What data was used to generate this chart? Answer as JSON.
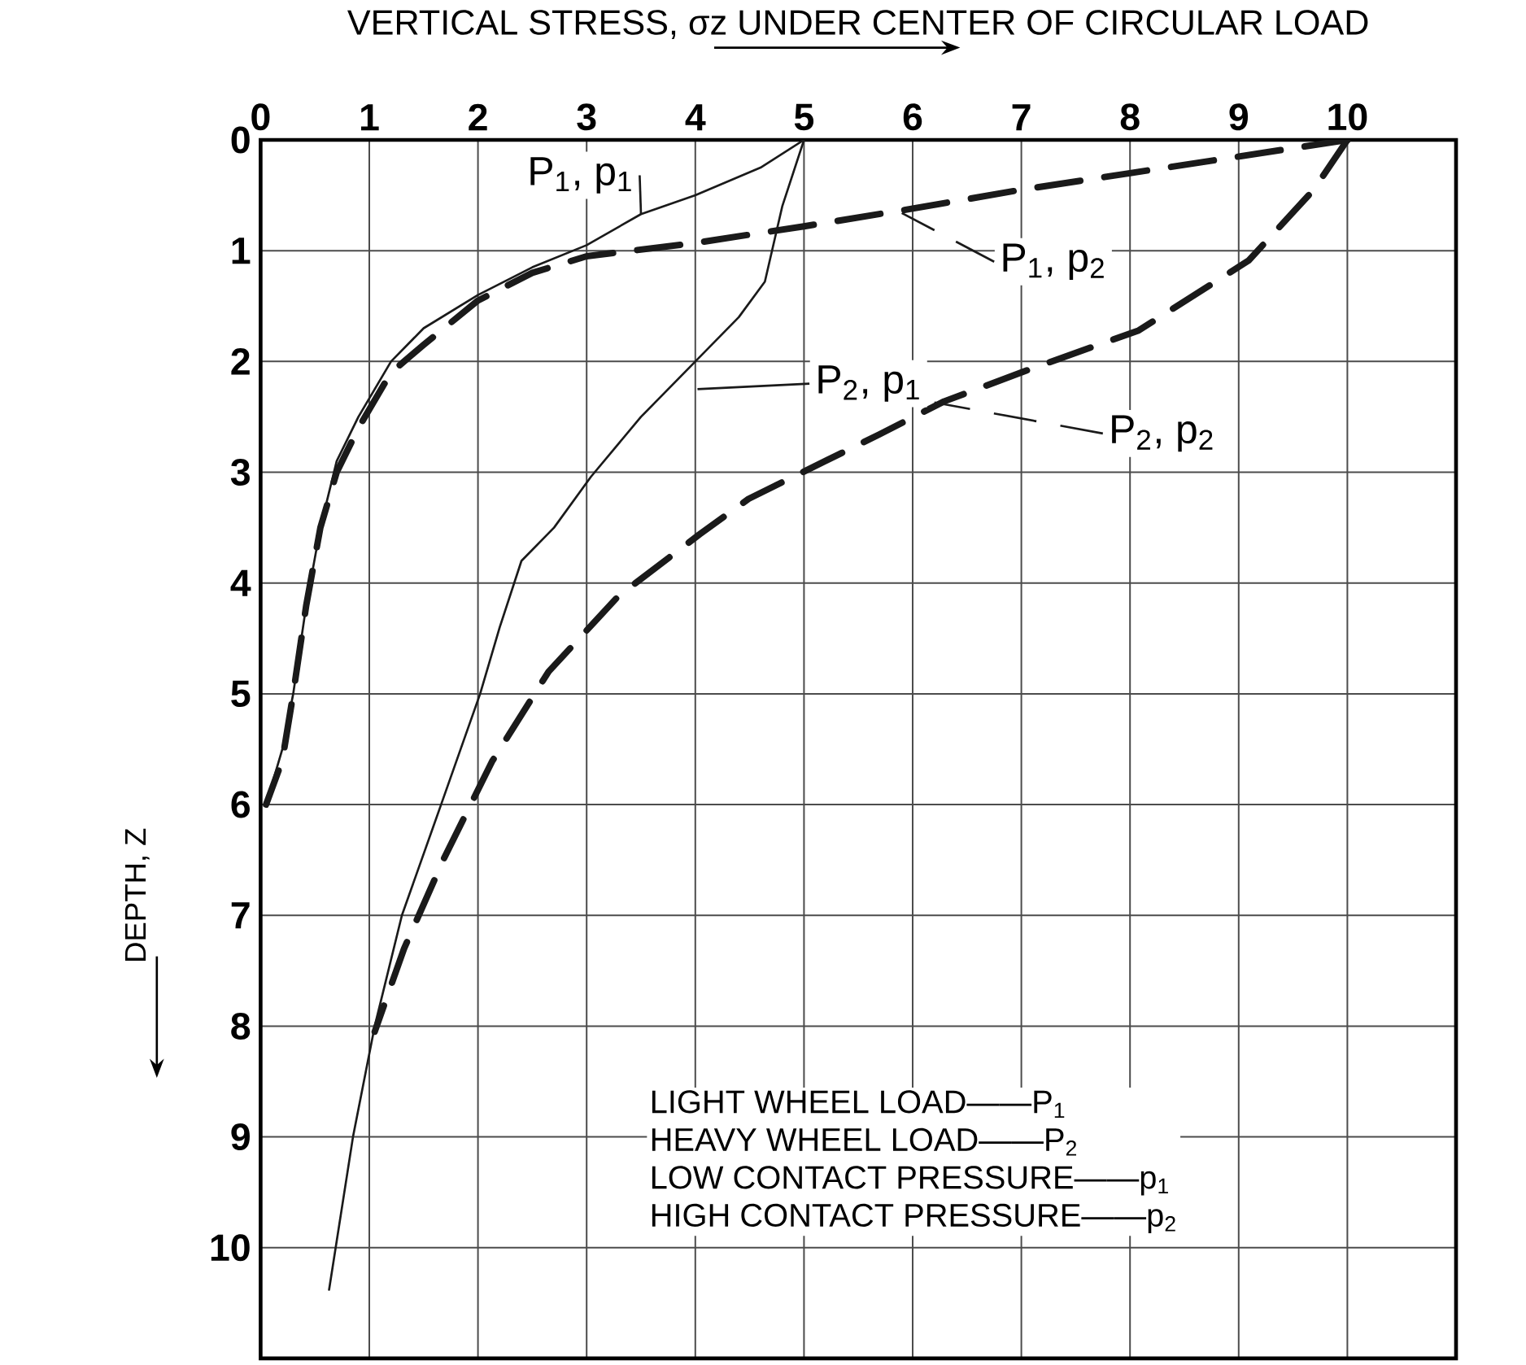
{
  "chart_data": {
    "type": "line",
    "xlabel": "VERTICAL STRESS, σz UNDER CENTER OF CIRCULAR LOAD",
    "ylabel": "DEPTH, Z",
    "xlim": [
      0,
      11
    ],
    "ylim": [
      11,
      0
    ],
    "xticks": [
      0,
      1,
      2,
      3,
      4,
      5,
      6,
      7,
      8,
      9,
      10
    ],
    "yticks": [
      0,
      1,
      2,
      3,
      4,
      5,
      6,
      7,
      8,
      9,
      10
    ],
    "grid": true,
    "marker": "none",
    "legend": "top right",
    "series": [
      {
        "name": "P$_{1}$, p$_{1}$",
        "color": "#1a1a1a",
        "line_style": "solid",
        "x": [
          5,
          4.6,
          4,
          3.5,
          3,
          2.5,
          2,
          1.5,
          1.2,
          0.9,
          0.7,
          0.55,
          0.42,
          0.3,
          0.2,
          0.05
        ],
        "values": [
          0,
          0.25,
          0.5,
          0.67,
          0.95,
          1.15,
          1.4,
          1.7,
          2.0,
          2.5,
          2.9,
          3.5,
          4.2,
          5.0,
          5.5,
          6.0
        ]
      },
      {
        "name": "P$_{1}$, p$_{2}$",
        "color": "#1a1a1a",
        "line_style": "dashed",
        "x": [
          10,
          9,
          8,
          7,
          6,
          5,
          4,
          3,
          2.5,
          2,
          1.5,
          1.2,
          0.9,
          0.7,
          0.55,
          0.42,
          0.3,
          0.2,
          0.05
        ],
        "values": [
          0,
          0.15,
          0.3,
          0.45,
          0.62,
          0.78,
          0.93,
          1.05,
          1.2,
          1.45,
          1.85,
          2.1,
          2.6,
          3.0,
          3.5,
          4.2,
          5.0,
          5.6,
          6.0
        ]
      },
      {
        "name": "P$_{2}$, p$_{1}$",
        "color": "#1a1a1a",
        "line_style": "solid",
        "x": [
          5,
          4.8,
          4.64,
          4.4,
          4.0,
          3.5,
          3.04,
          2.7,
          2.4,
          2.2,
          2.02,
          1.65,
          1.3,
          1.05,
          0.85,
          0.63
        ],
        "values": [
          0,
          0.6,
          1.28,
          1.6,
          2.0,
          2.5,
          3.04,
          3.5,
          3.8,
          4.4,
          5.0,
          6.03,
          7.0,
          8.0,
          9.0,
          10.38
        ]
      },
      {
        "name": "P$_{2}$, p$_{2}$",
        "color": "#1a1a1a",
        "line_style": "dashed",
        "x": [
          10,
          9.69,
          9.09,
          8.08,
          7.08,
          6.29,
          5.69,
          4.49,
          4.04,
          3.29,
          2.65,
          2.13,
          1.69,
          1.32,
          1.05
        ],
        "values": [
          0,
          0.45,
          1.09,
          1.72,
          2.07,
          2.36,
          2.66,
          3.24,
          3.56,
          4.12,
          4.8,
          5.61,
          6.48,
          7.3,
          8.05
        ]
      }
    ],
    "annotations": [
      "LIGHT WHEEL LOAD——P$_{1}$",
      "HEAVY WHEEL LOAD——P$_{2}$",
      "LOW CONTACT PRESSURE——p$_{1}$",
      "HIGH CONTACT PRESSURE——p$_{2}$"
    ]
  }
}
